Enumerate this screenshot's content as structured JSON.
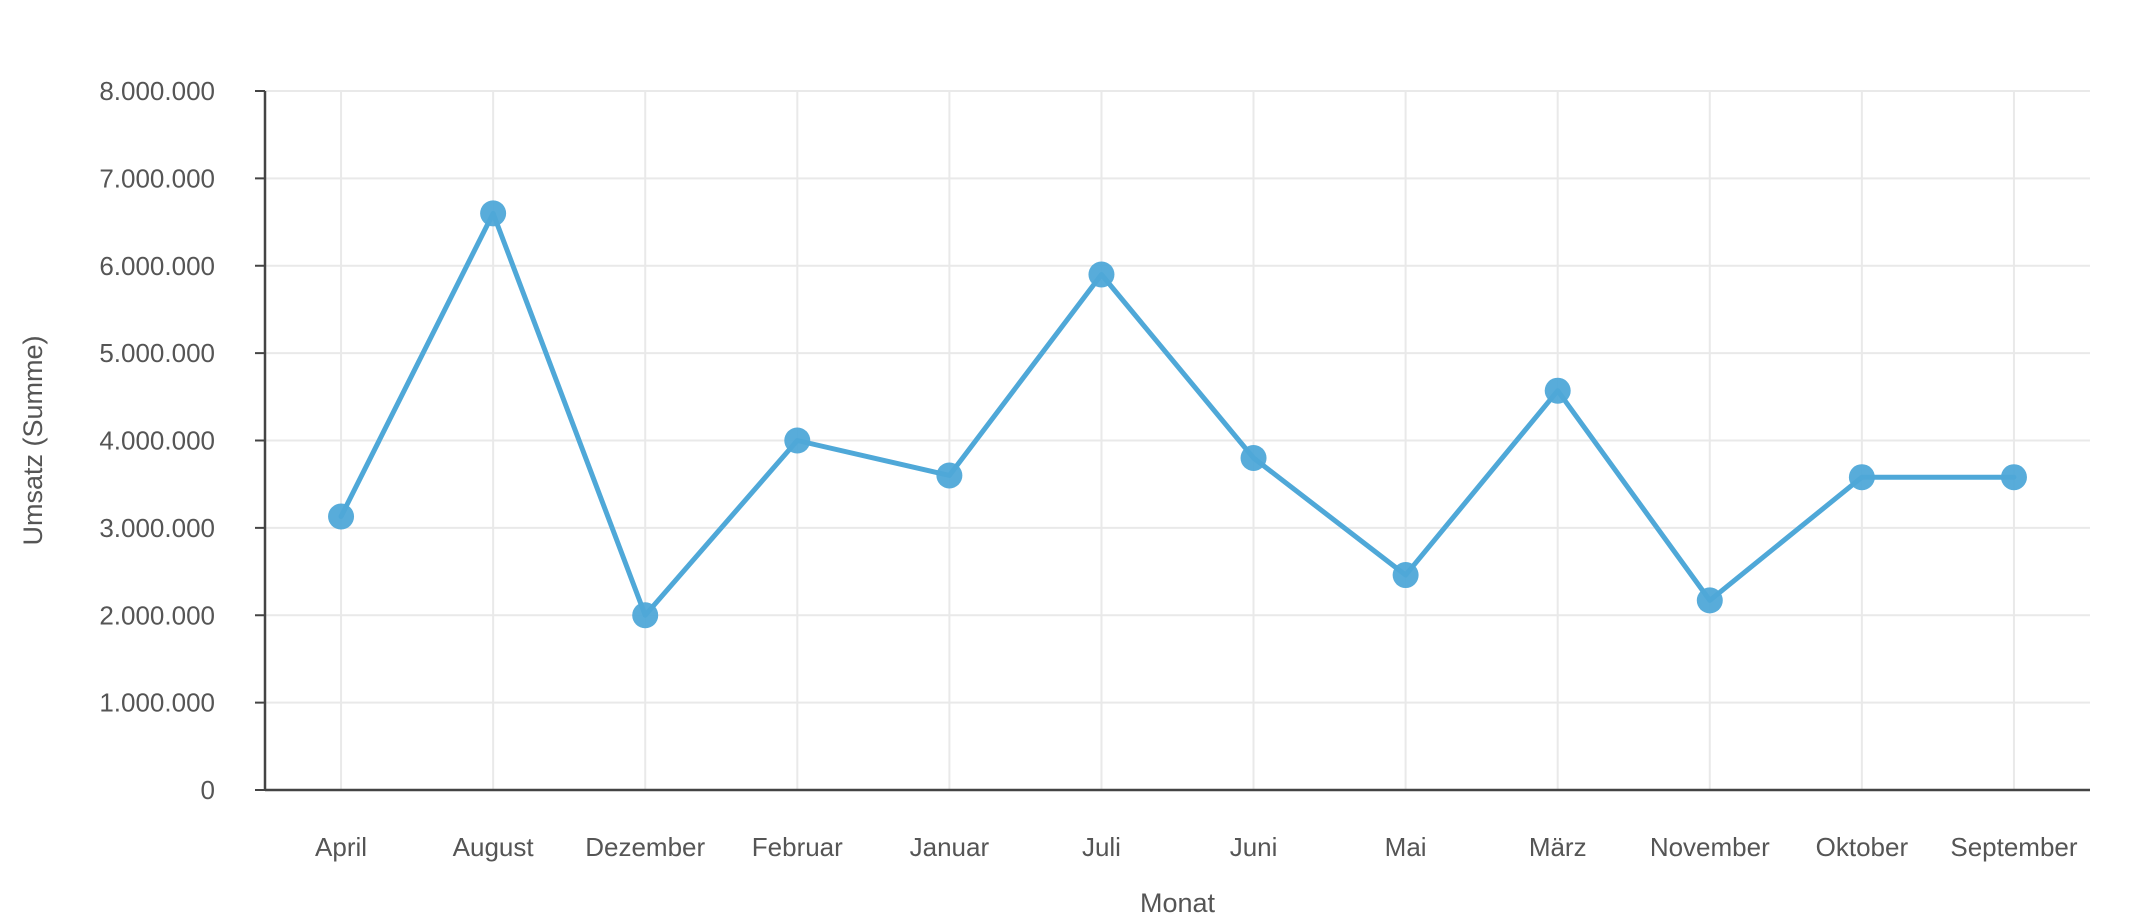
{
  "chart_data": {
    "type": "line",
    "title": "",
    "xlabel": "Monat",
    "ylabel": "Umsatz (Summe)",
    "categories": [
      "April",
      "August",
      "Dezember",
      "Februar",
      "Januar",
      "Juli",
      "Juni",
      "Mai",
      "März",
      "November",
      "Oktober",
      "September"
    ],
    "series": [
      {
        "values": [
          3130000,
          6600000,
          2000000,
          4000000,
          3600000,
          5900000,
          3800000,
          2460000,
          4570000,
          2170000,
          3580000,
          3580000
        ],
        "color": "#4fa8d8"
      }
    ],
    "ylim": [
      0,
      8000000
    ],
    "yticks": [
      0,
      1000000,
      2000000,
      3000000,
      4000000,
      5000000,
      6000000,
      7000000,
      8000000
    ],
    "ytick_labels": [
      "0",
      "1.000.000",
      "2.000.000",
      "3.000.000",
      "4.000.000",
      "5.000.000",
      "6.000.000",
      "7.000.000",
      "8.000.000"
    ],
    "grid": true,
    "legend": "none"
  }
}
